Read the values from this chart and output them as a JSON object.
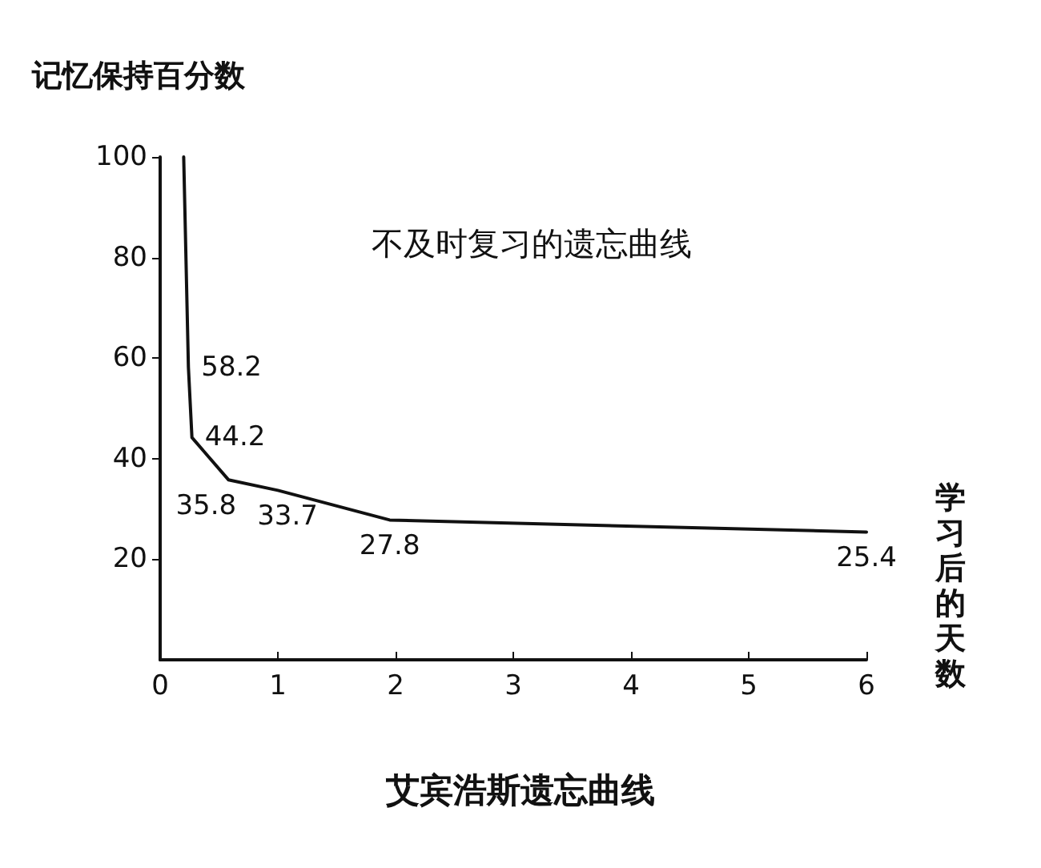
{
  "chart_data": {
    "type": "line",
    "title": "艾宾浩斯遗忘曲线",
    "xlabel": "学习后的天数",
    "ylabel": "记忆保持百分数",
    "annotations": [
      "不及时复习的遗忘曲线"
    ],
    "x": [
      0.2,
      0.24,
      0.27,
      0.58,
      1.0,
      1.95,
      6
    ],
    "series": [
      {
        "color": "#111111",
        "values": [
          100,
          58.2,
          44.2,
          35.8,
          33.7,
          27.8,
          25.4
        ],
        "value_labels": [
          null,
          "58.2",
          "44.2",
          "35.8",
          "33.7",
          "27.8",
          "25.4"
        ]
      }
    ],
    "xlim": [
      0,
      6
    ],
    "xticks": [
      0,
      1,
      2,
      3,
      4,
      5,
      6
    ],
    "ylim": [
      0,
      100
    ],
    "yticks": [
      20,
      40,
      60,
      80,
      100
    ],
    "marker": "none",
    "line_style": "solid"
  }
}
